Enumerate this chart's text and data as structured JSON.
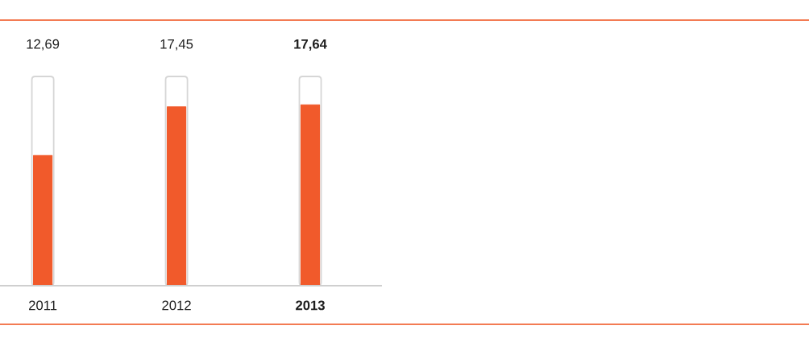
{
  "chart_data": {
    "type": "bar",
    "categories": [
      "2011",
      "2012",
      "2013"
    ],
    "values": [
      12.69,
      17.45,
      17.64
    ],
    "value_labels": [
      "12,69",
      "17,45",
      "17,64"
    ],
    "color": "#f15a2b",
    "tick_labels": "x"
  }
}
